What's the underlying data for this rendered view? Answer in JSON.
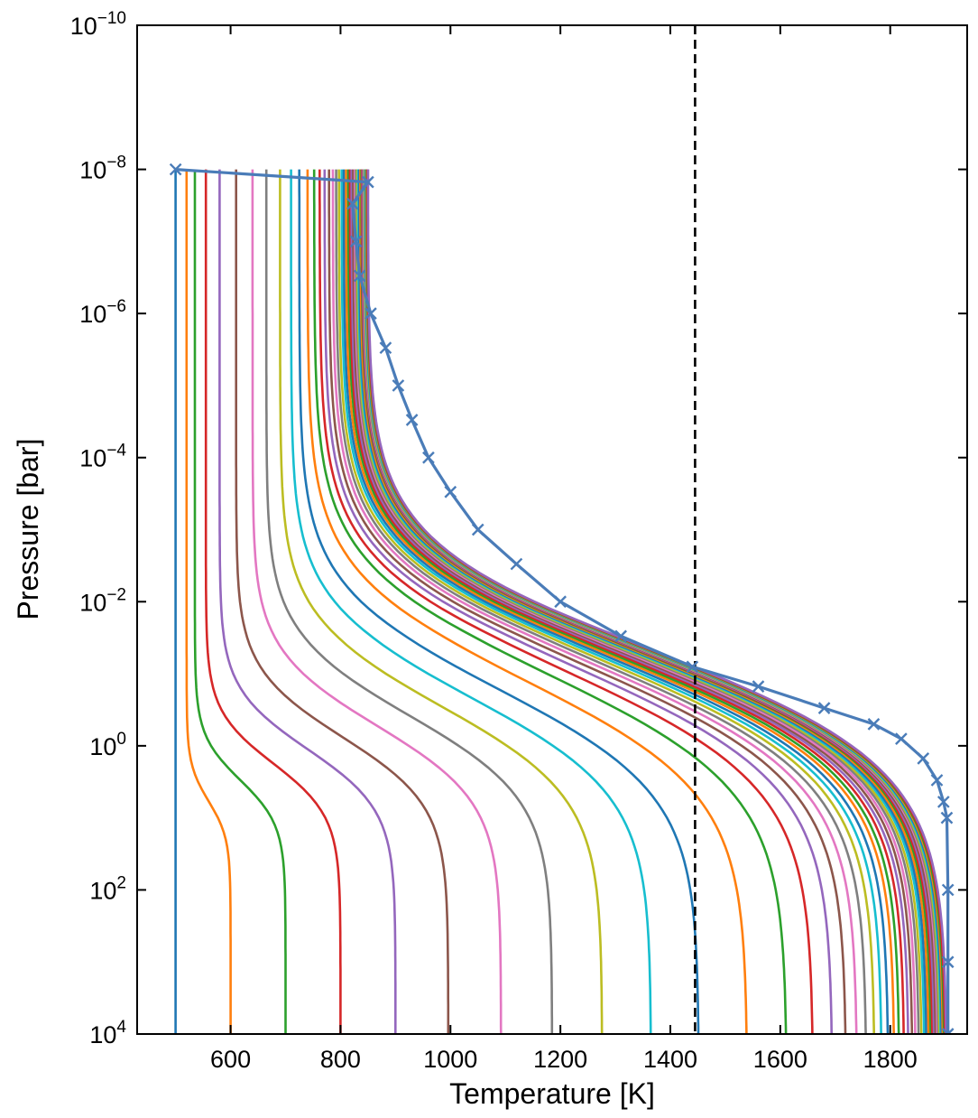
{
  "chart_data": {
    "type": "line",
    "xlabel": "Temperature [K]",
    "ylabel": "Pressure [bar]",
    "xlim": [
      430,
      1940
    ],
    "ylim": [
      10000,
      1e-10
    ],
    "yscale": "log",
    "x_ticks": [
      600,
      800,
      1000,
      1200,
      1400,
      1600,
      1800
    ],
    "x_tick_labels": [
      "600",
      "800",
      "1000",
      "1200",
      "1400",
      "1600",
      "1800"
    ],
    "y_ticks": [
      {
        "value": 1e-10,
        "base": "10",
        "exp": "−10"
      },
      {
        "value": 1e-08,
        "base": "10",
        "exp": "−8"
      },
      {
        "value": 1e-06,
        "base": "10",
        "exp": "−6"
      },
      {
        "value": 0.0001,
        "base": "10",
        "exp": "−4"
      },
      {
        "value": 0.01,
        "base": "10",
        "exp": "−2"
      },
      {
        "value": 1,
        "base": "10",
        "exp": "0"
      },
      {
        "value": 100,
        "base": "10",
        "exp": "2"
      },
      {
        "value": 10000,
        "base": "10",
        "exp": "4"
      }
    ],
    "reference_line": {
      "x": 1445,
      "style": "dashed",
      "color": "#000000"
    },
    "colors": [
      "#1f77b4",
      "#ff7f0e",
      "#2ca02c",
      "#d62728",
      "#9467bd",
      "#8c564b",
      "#e377c2",
      "#7f7f7f",
      "#bcbd22",
      "#17becf"
    ],
    "final_color": "#4a7cb8",
    "iterations": {
      "count": 45,
      "deep_temperatures": [
        500,
        600,
        700,
        800,
        900,
        996,
        1092,
        1185,
        1276,
        1365,
        1452,
        1540,
        1612,
        1660,
        1695,
        1720,
        1740,
        1757,
        1772,
        1785,
        1797,
        1808,
        1817,
        1826,
        1834,
        1841,
        1847,
        1853,
        1858,
        1863,
        1867,
        1871,
        1875,
        1878,
        1881,
        1884,
        1887,
        1889,
        1891,
        1893,
        1895,
        1897,
        1899,
        1901,
        1903
      ],
      "top_temperatures": [
        510,
        520,
        535,
        555,
        580,
        610,
        640,
        665,
        690,
        710,
        725,
        740,
        752,
        762,
        771,
        779,
        786,
        792,
        797,
        802,
        806,
        810,
        814,
        817,
        820,
        823,
        826,
        828,
        830,
        832,
        834,
        836,
        838,
        839,
        840,
        841,
        842,
        843,
        844,
        845,
        846,
        847,
        848,
        849,
        850
      ]
    },
    "final_profile": {
      "marker": "x",
      "points": [
        {
          "T": 500,
          "P": 1e-08
        },
        {
          "T": 850,
          "P": 1.5e-08
        },
        {
          "T": 822,
          "P": 3e-08
        },
        {
          "T": 828,
          "P": 1e-07
        },
        {
          "T": 835,
          "P": 3e-07
        },
        {
          "T": 855,
          "P": 1e-06
        },
        {
          "T": 882,
          "P": 3e-06
        },
        {
          "T": 905,
          "P": 1e-05
        },
        {
          "T": 930,
          "P": 3e-05
        },
        {
          "T": 960,
          "P": 0.0001
        },
        {
          "T": 1000,
          "P": 0.0003
        },
        {
          "T": 1050,
          "P": 0.001
        },
        {
          "T": 1120,
          "P": 0.003
        },
        {
          "T": 1200,
          "P": 0.01
        },
        {
          "T": 1310,
          "P": 0.03
        },
        {
          "T": 1440,
          "P": 0.08
        },
        {
          "T": 1560,
          "P": 0.15
        },
        {
          "T": 1680,
          "P": 0.3
        },
        {
          "T": 1770,
          "P": 0.5
        },
        {
          "T": 1820,
          "P": 0.8
        },
        {
          "T": 1860,
          "P": 1.5
        },
        {
          "T": 1885,
          "P": 3
        },
        {
          "T": 1897,
          "P": 6
        },
        {
          "T": 1903,
          "P": 10
        },
        {
          "T": 1905,
          "P": 100
        },
        {
          "T": 1905,
          "P": 1000
        },
        {
          "T": 1905,
          "P": 10000
        }
      ]
    }
  }
}
